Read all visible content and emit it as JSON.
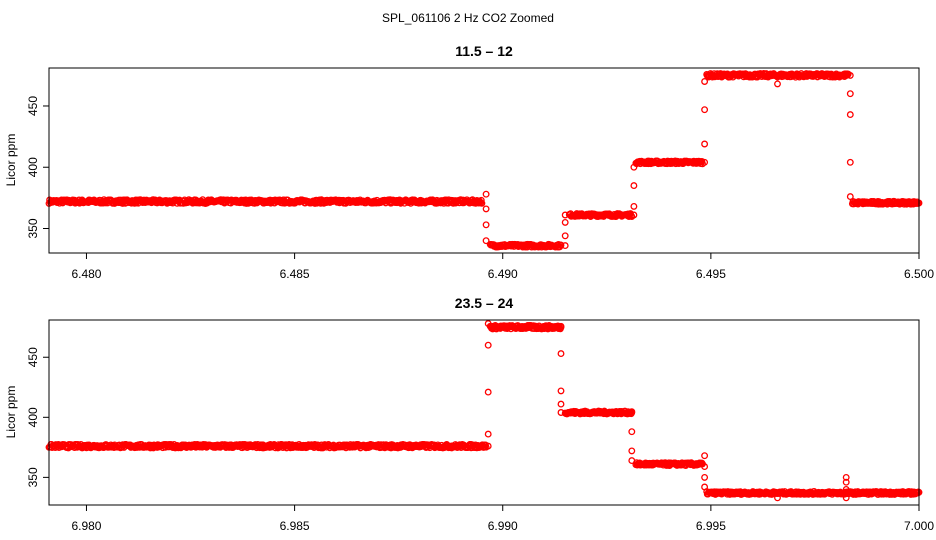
{
  "figure": {
    "title": "SPL_061106  2 Hz CO2 Zoomed"
  },
  "colors": {
    "points": "#ff0000",
    "axis": "#000000",
    "background": "#ffffff"
  },
  "chart_data": [
    {
      "type": "scatter",
      "title": "11.5 – 12",
      "ylabel": "Licor ppm",
      "xlabel": "",
      "xlim": [
        6.4791,
        6.5
      ],
      "ylim": [
        330,
        481
      ],
      "xticks": [
        "6.480",
        "6.485",
        "6.490",
        "6.495",
        "6.500"
      ],
      "yticks": [
        "350",
        "400",
        "450"
      ],
      "grid": false,
      "marker": "open-circle",
      "segments": [
        {
          "x": [
            6.4791,
            6.4895
          ],
          "y": 372,
          "noise": 1.5
        },
        {
          "x": [
            6.4897,
            6.4914
          ],
          "y": 336,
          "noise": 1.2
        },
        {
          "x": [
            6.4916,
            6.4931
          ],
          "y": 361,
          "noise": 1.2
        },
        {
          "x": [
            6.4932,
            6.4948
          ],
          "y": 404,
          "noise": 1.2
        },
        {
          "x": [
            6.4949,
            6.4983
          ],
          "y": 475,
          "noise": 1.5
        },
        {
          "x": [
            6.4984,
            6.5
          ],
          "y": 371,
          "noise": 1.2
        }
      ],
      "transitions": [
        {
          "x": 6.4896,
          "y": [
            378,
            366,
            353,
            340
          ]
        },
        {
          "x": 6.4915,
          "y": [
            336,
            344,
            355,
            361
          ]
        },
        {
          "x": 6.49315,
          "y": [
            361,
            368,
            385,
            400
          ]
        },
        {
          "x": 6.49485,
          "y": [
            404,
            419,
            447,
            470
          ]
        },
        {
          "x": 6.4966,
          "y": [
            468
          ]
        },
        {
          "x": 6.49835,
          "y": [
            475,
            460,
            443,
            404,
            376
          ]
        }
      ]
    },
    {
      "type": "scatter",
      "title": "23.5 – 24",
      "ylabel": "Licor ppm",
      "xlabel": "",
      "xlim": [
        6.9791,
        7.0
      ],
      "ylim": [
        327,
        481
      ],
      "xticks": [
        "6.980",
        "6.985",
        "6.990",
        "6.995",
        "7.000"
      ],
      "yticks": [
        "350",
        "400",
        "450"
      ],
      "grid": false,
      "marker": "open-circle",
      "segments": [
        {
          "x": [
            6.9791,
            6.9896
          ],
          "y": 376,
          "noise": 1.5
        },
        {
          "x": [
            6.9897,
            6.9914
          ],
          "y": 475,
          "noise": 1.5
        },
        {
          "x": [
            6.9915,
            6.9931
          ],
          "y": 404,
          "noise": 1.2
        },
        {
          "x": [
            6.9932,
            6.9948
          ],
          "y": 361,
          "noise": 1.2
        },
        {
          "x": [
            6.9949,
            7.0
          ],
          "y": 337,
          "noise": 1.2
        }
      ],
      "transitions": [
        {
          "x": 6.98965,
          "y": [
            376,
            386,
            421,
            460,
            478
          ]
        },
        {
          "x": 6.9914,
          "y": [
            475,
            453,
            422,
            411,
            404
          ]
        },
        {
          "x": 6.9931,
          "y": [
            404,
            388,
            372,
            364
          ]
        },
        {
          "x": 6.99485,
          "y": [
            368,
            359,
            350,
            342
          ]
        },
        {
          "x": 6.9966,
          "y": [
            333
          ]
        },
        {
          "x": 6.99825,
          "y": [
            333,
            340,
            346,
            350
          ]
        }
      ]
    }
  ]
}
